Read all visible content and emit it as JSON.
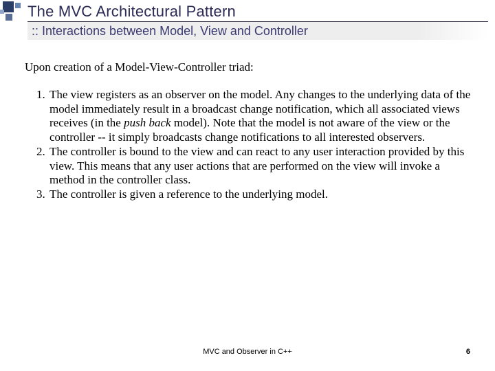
{
  "title": "The MVC Architectural Pattern",
  "subtitle": ":: Interactions between Model, View and Controller",
  "intro": "Upon creation of a Model-View-Controller triad:",
  "items": [
    {
      "pre": "The view registers as an observer on the model. Any changes to the underlying data of the model immediately result in a broadcast change notification, which all associated views receives (in the ",
      "em": "push back",
      "post": " model). Note that the model is not aware of the view or the controller -- it simply broadcasts change notifications to all interested observers."
    },
    {
      "pre": "The controller is bound to the view and can react to any user interaction provided by this view. This means that any user actions that are performed on the view will invoke a method in the controller class.",
      "em": "",
      "post": ""
    },
    {
      "pre": "The controller is given a reference to the underlying model.",
      "em": "",
      "post": ""
    }
  ],
  "footer": {
    "center": "MVC and Observer in C++",
    "page": "6"
  }
}
